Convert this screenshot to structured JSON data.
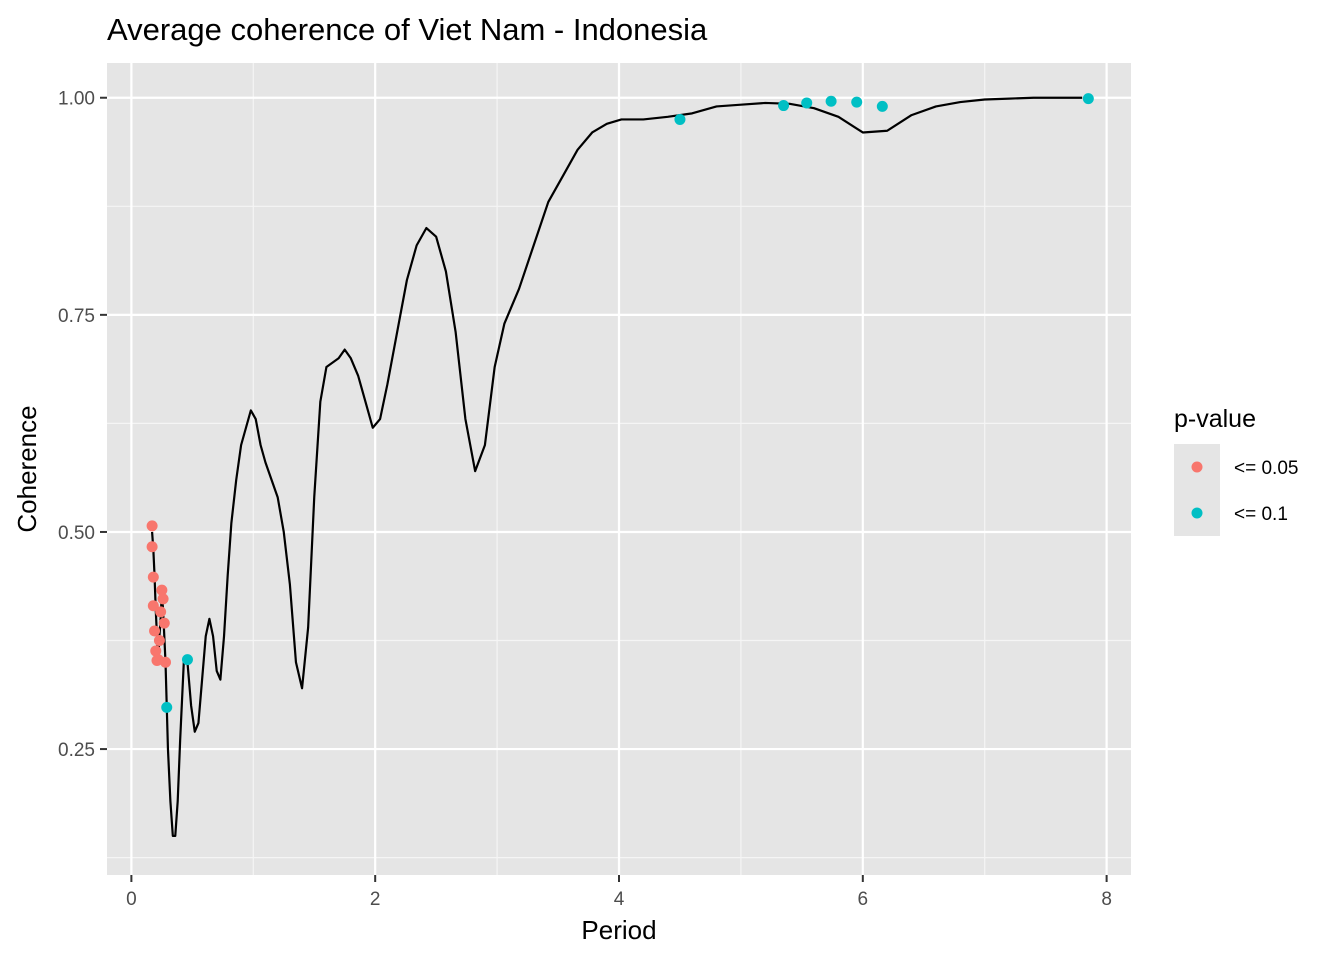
{
  "chart_data": {
    "type": "line",
    "title": "Average coherence of Viet Nam - Indonesia",
    "xlabel": "Period",
    "ylabel": "Coherence",
    "xlim": [
      -0.2,
      8.2
    ],
    "ylim": [
      0.105,
      1.04
    ],
    "xticks": [
      0,
      2,
      4,
      6,
      8
    ],
    "xtick_labels": [
      "0",
      "2",
      "4",
      "6",
      "8"
    ],
    "yticks": [
      0.25,
      0.5,
      0.75,
      1.0
    ],
    "ytick_labels": [
      "0.25",
      "0.50",
      "0.75",
      "1.00"
    ],
    "grid": true,
    "background": "#e5e5e5",
    "line_color": "#000000",
    "legend": {
      "title": "p-value",
      "position": "right",
      "items": [
        {
          "label": "<= 0.05",
          "color": "#f8766d"
        },
        {
          "label": "<= 0.1",
          "color": "#00bfc4"
        }
      ]
    },
    "line": {
      "x": [
        0.17,
        0.18,
        0.19,
        0.2,
        0.21,
        0.22,
        0.23,
        0.24,
        0.25,
        0.26,
        0.27,
        0.28,
        0.29,
        0.3,
        0.32,
        0.34,
        0.36,
        0.38,
        0.4,
        0.43,
        0.46,
        0.49,
        0.52,
        0.55,
        0.58,
        0.61,
        0.64,
        0.67,
        0.7,
        0.73,
        0.76,
        0.79,
        0.82,
        0.86,
        0.9,
        0.94,
        0.98,
        1.02,
        1.06,
        1.1,
        1.15,
        1.2,
        1.25,
        1.3,
        1.35,
        1.4,
        1.45,
        1.5,
        1.55,
        1.6,
        1.7,
        1.75,
        1.8,
        1.86,
        1.92,
        1.98,
        2.04,
        2.1,
        2.18,
        2.26,
        2.34,
        2.42,
        2.5,
        2.58,
        2.66,
        2.74,
        2.82,
        2.9,
        2.98,
        3.06,
        3.18,
        3.3,
        3.42,
        3.54,
        3.66,
        3.78,
        3.9,
        4.02,
        4.2,
        4.4,
        4.6,
        4.8,
        5.0,
        5.2,
        5.4,
        5.6,
        5.8,
        6.0,
        6.2,
        6.4,
        6.6,
        6.8,
        7.0,
        7.2,
        7.4,
        7.6,
        7.8
      ],
      "y": [
        0.5,
        0.48,
        0.45,
        0.41,
        0.38,
        0.35,
        0.38,
        0.4,
        0.43,
        0.41,
        0.38,
        0.35,
        0.3,
        0.25,
        0.19,
        0.15,
        0.15,
        0.19,
        0.26,
        0.35,
        0.35,
        0.3,
        0.27,
        0.28,
        0.33,
        0.38,
        0.4,
        0.38,
        0.34,
        0.33,
        0.38,
        0.45,
        0.51,
        0.56,
        0.6,
        0.62,
        0.64,
        0.63,
        0.6,
        0.58,
        0.56,
        0.54,
        0.5,
        0.44,
        0.35,
        0.32,
        0.39,
        0.54,
        0.65,
        0.69,
        0.7,
        0.71,
        0.7,
        0.68,
        0.65,
        0.62,
        0.63,
        0.67,
        0.73,
        0.79,
        0.83,
        0.85,
        0.84,
        0.8,
        0.73,
        0.63,
        0.57,
        0.6,
        0.69,
        0.74,
        0.78,
        0.83,
        0.88,
        0.91,
        0.94,
        0.96,
        0.97,
        0.975,
        0.975,
        0.978,
        0.982,
        0.99,
        0.992,
        0.994,
        0.993,
        0.988,
        0.978,
        0.96,
        0.962,
        0.98,
        0.99,
        0.995,
        0.998,
        0.999,
        1.0,
        1.0,
        1.0
      ]
    },
    "series": [
      {
        "name": "<= 0.05",
        "color": "#f8766d",
        "points": [
          {
            "x": 0.17,
            "y": 0.507
          },
          {
            "x": 0.17,
            "y": 0.483
          },
          {
            "x": 0.18,
            "y": 0.448
          },
          {
            "x": 0.18,
            "y": 0.415
          },
          {
            "x": 0.19,
            "y": 0.386
          },
          {
            "x": 0.2,
            "y": 0.363
          },
          {
            "x": 0.21,
            "y": 0.352
          },
          {
            "x": 0.22,
            "y": 0.353
          },
          {
            "x": 0.23,
            "y": 0.375
          },
          {
            "x": 0.24,
            "y": 0.408
          },
          {
            "x": 0.25,
            "y": 0.433
          },
          {
            "x": 0.26,
            "y": 0.423
          },
          {
            "x": 0.27,
            "y": 0.395
          },
          {
            "x": 0.28,
            "y": 0.35
          }
        ]
      },
      {
        "name": "<= 0.1",
        "color": "#00bfc4",
        "points": [
          {
            "x": 0.29,
            "y": 0.298
          },
          {
            "x": 0.46,
            "y": 0.353
          },
          {
            "x": 4.5,
            "y": 0.975
          },
          {
            "x": 5.35,
            "y": 0.991
          },
          {
            "x": 5.54,
            "y": 0.994
          },
          {
            "x": 5.74,
            "y": 0.996
          },
          {
            "x": 5.95,
            "y": 0.995
          },
          {
            "x": 6.16,
            "y": 0.99
          },
          {
            "x": 7.85,
            "y": 0.999
          }
        ]
      }
    ]
  }
}
